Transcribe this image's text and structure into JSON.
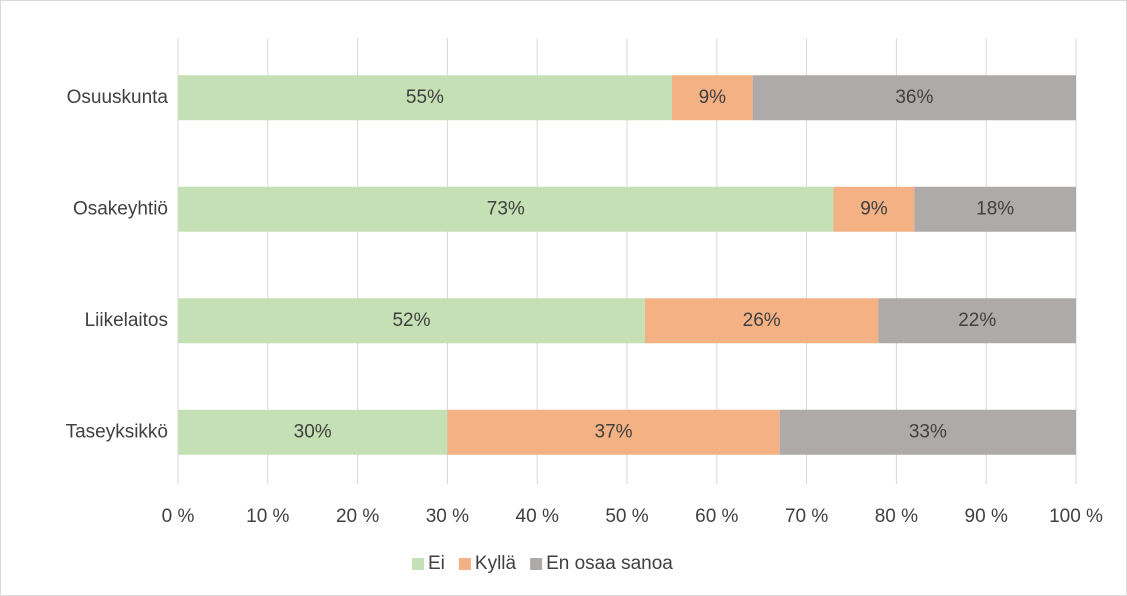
{
  "chart_data": {
    "type": "stacked_bar_horizontal",
    "categories": [
      "Osuuskunta",
      "Osakeyhtiö",
      "Liikelaitos",
      "Taseyksikkö"
    ],
    "series": [
      {
        "name": "Ei",
        "color": "#c5e0b4",
        "values": [
          55,
          73,
          52,
          30
        ],
        "value_labels": [
          "55%",
          "73%",
          "52%",
          "30%"
        ]
      },
      {
        "name": "Kyllä",
        "color": "#f4b183",
        "values": [
          9,
          9,
          26,
          37
        ],
        "value_labels": [
          "9%",
          "9%",
          "26%",
          "37%"
        ]
      },
      {
        "name": "En osaa sanoa",
        "color": "#aeaaaa",
        "values": [
          36,
          18,
          22,
          33
        ],
        "value_labels": [
          "36%",
          "18%",
          "22%",
          "33%"
        ]
      }
    ],
    "xlim": [
      0,
      100
    ],
    "xticks": [
      {
        "value": 0,
        "label": "0 %"
      },
      {
        "value": 10,
        "label": "10 %"
      },
      {
        "value": 20,
        "label": "20 %"
      },
      {
        "value": 30,
        "label": "30 %"
      },
      {
        "value": 40,
        "label": "40 %"
      },
      {
        "value": 50,
        "label": "50 %"
      },
      {
        "value": 60,
        "label": "60 %"
      },
      {
        "value": 70,
        "label": "70 %"
      },
      {
        "value": 80,
        "label": "80 %"
      },
      {
        "value": 90,
        "label": "90 %"
      },
      {
        "value": 100,
        "label": "100 %"
      }
    ],
    "grid": true,
    "legend": "bottom"
  }
}
